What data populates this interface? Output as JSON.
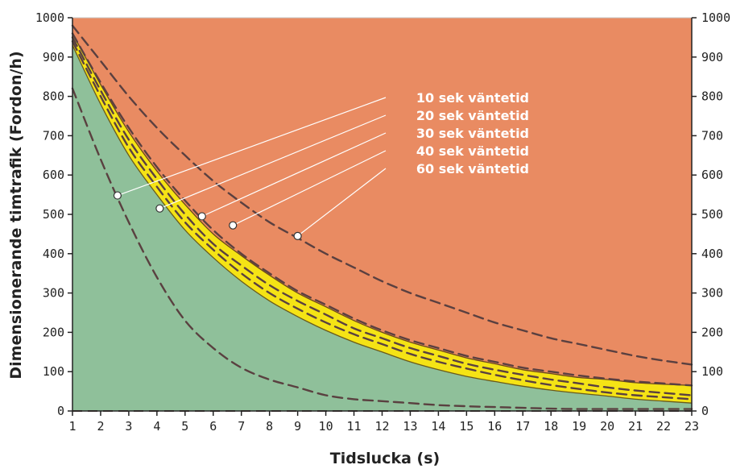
{
  "chart_data": {
    "type": "area",
    "title": "",
    "xlabel": "Tidslucka (s)",
    "ylabel": "Dimensionerande timtrafik (Fordon/h)",
    "xlim": [
      1,
      23
    ],
    "ylim": [
      0,
      1000
    ],
    "x_ticks": [
      1,
      2,
      3,
      4,
      5,
      6,
      7,
      8,
      9,
      10,
      11,
      12,
      13,
      14,
      15,
      16,
      17,
      18,
      19,
      20,
      21,
      22,
      23
    ],
    "y_ticks": [
      0,
      100,
      200,
      300,
      400,
      500,
      600,
      700,
      800,
      900,
      1000
    ],
    "grid": false,
    "zones": [
      {
        "name": "green",
        "color": "#8fc09a"
      },
      {
        "name": "yellow",
        "color": "#f5e315"
      },
      {
        "name": "orange",
        "color": "#e98b62"
      }
    ],
    "boundaries": [
      {
        "name": "green-yellow",
        "x": [
          1,
          2,
          3,
          4,
          5,
          6,
          7,
          8,
          9,
          10,
          11,
          12,
          13,
          14,
          15,
          16,
          17,
          18,
          19,
          20,
          21,
          22,
          23
        ],
        "y": [
          930,
          780,
          650,
          550,
          460,
          390,
          330,
          280,
          240,
          205,
          175,
          150,
          125,
          105,
          88,
          75,
          63,
          53,
          45,
          38,
          30,
          25,
          20
        ]
      },
      {
        "name": "yellow-orange",
        "x": [
          1,
          2,
          3,
          4,
          5,
          6,
          7,
          8,
          9,
          10,
          11,
          12,
          13,
          14,
          15,
          16,
          17,
          18,
          19,
          20,
          21,
          22,
          23
        ],
        "y": [
          960,
          830,
          710,
          610,
          525,
          450,
          395,
          345,
          300,
          265,
          230,
          200,
          175,
          155,
          135,
          120,
          105,
          95,
          85,
          80,
          72,
          68,
          65
        ]
      }
    ],
    "series": [
      {
        "label_index": 0,
        "x": [
          1,
          2,
          3,
          4,
          5,
          6,
          7,
          8,
          9,
          10,
          11,
          12,
          13,
          14,
          15,
          16,
          17,
          18,
          19,
          20,
          21,
          22,
          23
        ],
        "y": [
          820,
          640,
          480,
          340,
          230,
          160,
          110,
          80,
          60,
          40,
          30,
          25,
          20,
          15,
          12,
          10,
          8,
          6,
          5,
          5,
          5,
          5,
          5
        ]
      },
      {
        "label_index": 1,
        "x": [
          1,
          2,
          3,
          4,
          5,
          6,
          7,
          8,
          9,
          10,
          11,
          12,
          13,
          14,
          15,
          16,
          17,
          18,
          19,
          20,
          21,
          22,
          23
        ],
        "y": [
          940,
          800,
          670,
          570,
          480,
          410,
          350,
          300,
          260,
          225,
          195,
          170,
          145,
          125,
          108,
          92,
          78,
          66,
          56,
          47,
          40,
          35,
          30
        ]
      },
      {
        "label_index": 2,
        "x": [
          1,
          2,
          3,
          4,
          5,
          6,
          7,
          8,
          9,
          10,
          11,
          12,
          13,
          14,
          15,
          16,
          17,
          18,
          19,
          20,
          21,
          22,
          23
        ],
        "y": [
          950,
          815,
          690,
          590,
          500,
          425,
          370,
          320,
          280,
          245,
          210,
          185,
          160,
          140,
          120,
          105,
          92,
          80,
          70,
          60,
          52,
          46,
          40
        ]
      },
      {
        "label_index": 3,
        "x": [
          1,
          2,
          3,
          4,
          5,
          6,
          7,
          8,
          9,
          10,
          11,
          12,
          13,
          14,
          15,
          16,
          17,
          18,
          19,
          20,
          21,
          22,
          23
        ],
        "y": [
          960,
          835,
          720,
          620,
          535,
          460,
          400,
          350,
          305,
          270,
          235,
          205,
          180,
          160,
          140,
          125,
          110,
          100,
          90,
          82,
          75,
          70,
          65
        ]
      },
      {
        "label_index": 4,
        "x": [
          1,
          2,
          3,
          4,
          5,
          6,
          7,
          8,
          9,
          10,
          11,
          12,
          13,
          14,
          15,
          16,
          17,
          18,
          19,
          20,
          21,
          22,
          23
        ],
        "y": [
          980,
          890,
          800,
          720,
          650,
          585,
          530,
          480,
          440,
          400,
          365,
          330,
          300,
          275,
          250,
          225,
          205,
          185,
          170,
          155,
          140,
          128,
          118
        ]
      }
    ],
    "legend": {
      "labels": [
        "10 sek väntetid",
        "20 sek väntetid",
        "30 sek väntetid",
        "40 sek väntetid",
        "60 sek väntetid"
      ],
      "label_color": "#ffffff",
      "marker_points": [
        {
          "x": 2.6,
          "y": 548
        },
        {
          "x": 4.1,
          "y": 515
        },
        {
          "x": 5.6,
          "y": 495
        },
        {
          "x": 6.7,
          "y": 472
        },
        {
          "x": 9.0,
          "y": 445
        }
      ]
    }
  }
}
